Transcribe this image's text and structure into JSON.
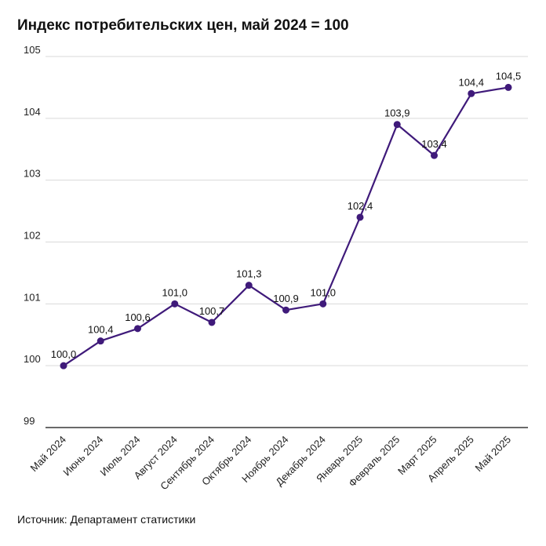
{
  "chart_data": {
    "type": "line",
    "title": "Индекс потребительских цен, май 2024 = 100",
    "source": "Источник: Департамент статистики",
    "categories": [
      "Май 2024",
      "Июнь 2024",
      "Июль 2024",
      "Август 2024",
      "Сентябрь 2024",
      "Октябрь 2024",
      "Ноябрь 2024",
      "Декабрь 2024",
      "Январь 2025",
      "Февраль 2025",
      "Март 2025",
      "Апрель 2025",
      "Май 2025"
    ],
    "series": [
      {
        "values": [
          100.0,
          100.4,
          100.6,
          101.0,
          100.7,
          101.3,
          100.9,
          101.0,
          102.4,
          103.9,
          103.4,
          104.4,
          104.5
        ],
        "labels": [
          "100,0",
          "100,4",
          "100,6",
          "101,0",
          "100,7",
          "101,3",
          "100,9",
          "101,0",
          "102,4",
          "103,9",
          "103,4",
          "104,4",
          "104,5"
        ],
        "color": "#3f1a7a"
      }
    ],
    "yticks": [
      "99",
      "100",
      "101",
      "102",
      "103",
      "104",
      "105"
    ],
    "ylim": [
      99,
      105
    ],
    "grid": true,
    "xlabel": "",
    "ylabel": ""
  }
}
